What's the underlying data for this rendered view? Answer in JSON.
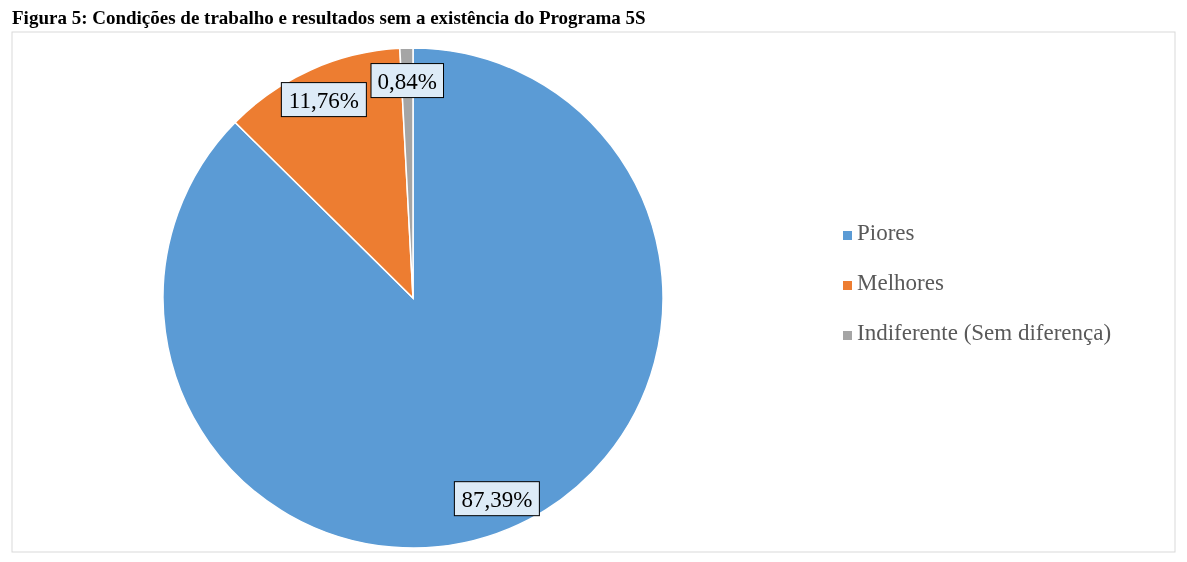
{
  "chart_data": {
    "type": "pie",
    "title": "Figura 5: Condições de trabalho e resultados sem a existência do Programa 5S",
    "categories": [
      "Piores",
      "Melhores",
      "Indiferente (Sem diferença)"
    ],
    "values": [
      87.39,
      11.76,
      0.84
    ],
    "colors": [
      "#5b9bd5",
      "#ed7d31",
      "#a5a5a5"
    ],
    "value_labels": [
      "87,39%",
      "11,76%",
      "0,84%"
    ],
    "legend": "right"
  }
}
